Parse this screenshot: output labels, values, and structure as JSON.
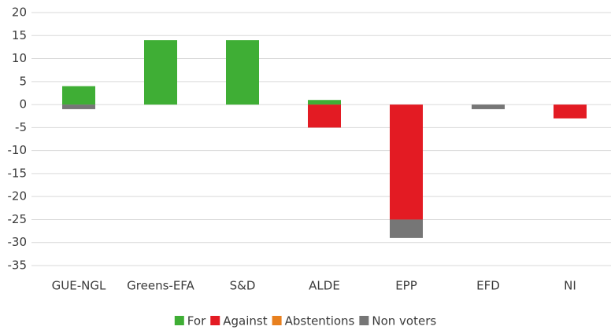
{
  "chart_data": {
    "type": "bar",
    "stacked": true,
    "categories": [
      "GUE-NGL",
      "Greens-EFA",
      "S&D",
      "ALDE",
      "EPP",
      "EFD",
      "NI"
    ],
    "series": [
      {
        "name": "For",
        "color": "#3fae35",
        "values": [
          4,
          14,
          14,
          1,
          0,
          0,
          0
        ]
      },
      {
        "name": "Against",
        "color": "#e31b23",
        "values": [
          0,
          0,
          0,
          -5,
          -25,
          0,
          -3
        ]
      },
      {
        "name": "Abstentions",
        "color": "#e8801e",
        "values": [
          0,
          0,
          0,
          0,
          0,
          0,
          0
        ]
      },
      {
        "name": "Non voters",
        "color": "#767676",
        "values": [
          -1,
          0,
          0,
          0,
          -4,
          -1,
          0
        ]
      }
    ],
    "ylim": [
      -35,
      20
    ],
    "yticks": [
      -35,
      -30,
      -25,
      -20,
      -15,
      -10,
      -5,
      0,
      5,
      10,
      15,
      20
    ],
    "grid": true,
    "legend": "bottom"
  }
}
